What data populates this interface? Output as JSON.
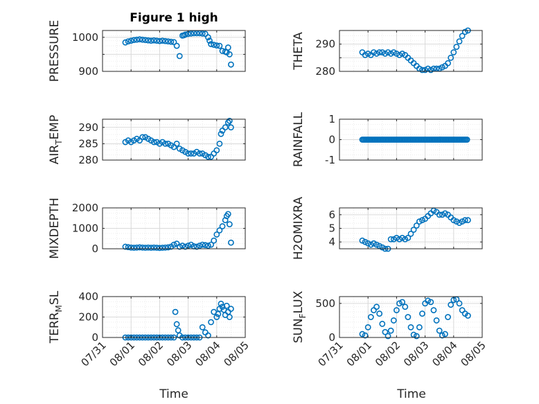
{
  "figure": {
    "title": "Figure 1 high",
    "xlabel": "Time"
  },
  "chart_data": [
    {
      "type": "scatter",
      "ylabel": "PRESSURE",
      "y_ticks": [
        900,
        950,
        1000
      ],
      "y_tick_labels": [
        "900",
        "",
        "1000"
      ],
      "ylim": [
        900,
        1020
      ],
      "xlim": [
        0,
        5
      ],
      "grid": true,
      "x": [
        0.8,
        0.9,
        1.0,
        1.1,
        1.2,
        1.3,
        1.4,
        1.5,
        1.6,
        1.7,
        1.8,
        1.9,
        2.0,
        2.1,
        2.2,
        2.3,
        2.4,
        2.5,
        2.6,
        2.7,
        2.8,
        2.85,
        2.9,
        3.0,
        3.1,
        3.2,
        3.3,
        3.4,
        3.5,
        3.6,
        3.7,
        3.75,
        3.8,
        3.9,
        4.0,
        4.1,
        4.2,
        4.3,
        4.35,
        4.4,
        4.45,
        4.5
      ],
      "y": [
        985,
        988,
        990,
        992,
        993,
        994,
        993,
        992,
        991,
        990,
        991,
        990,
        989,
        990,
        989,
        988,
        987,
        986,
        975,
        945,
        1005,
        1006,
        1008,
        1010,
        1011,
        1012,
        1012,
        1012,
        1011,
        1010,
        1000,
        990,
        980,
        978,
        976,
        975,
        960,
        958,
        956,
        970,
        950,
        920
      ]
    },
    {
      "type": "scatter",
      "ylabel": "THETA",
      "y_ticks": [
        280,
        285,
        290
      ],
      "y_tick_labels": [
        "280",
        "",
        "290"
      ],
      "ylim": [
        280,
        295
      ],
      "xlim": [
        0,
        5
      ],
      "grid": true,
      "x": [
        0.8,
        0.9,
        1.0,
        1.1,
        1.2,
        1.3,
        1.4,
        1.5,
        1.6,
        1.7,
        1.8,
        1.9,
        2.0,
        2.1,
        2.2,
        2.3,
        2.4,
        2.5,
        2.6,
        2.7,
        2.8,
        2.9,
        3.0,
        3.1,
        3.2,
        3.3,
        3.4,
        3.5,
        3.6,
        3.7,
        3.8,
        3.9,
        4.0,
        4.1,
        4.2,
        4.3,
        4.4,
        4.5
      ],
      "y": [
        287,
        286,
        286.5,
        286,
        287,
        286.5,
        287,
        287,
        286.5,
        287,
        286.5,
        287,
        286.5,
        286,
        286.5,
        286,
        285,
        284,
        283,
        282,
        281,
        280.5,
        280.5,
        281,
        280.5,
        281,
        281,
        281,
        281.5,
        282,
        283,
        285,
        287,
        289,
        291,
        293,
        294.5,
        295
      ]
    },
    {
      "type": "scatter",
      "ylabel": "AIR_TEMP",
      "y_ticks": [
        280,
        285,
        290
      ],
      "y_tick_labels": [
        "280",
        "285",
        "290"
      ],
      "ylim": [
        280,
        292.5
      ],
      "xlim": [
        0,
        5
      ],
      "grid": true,
      "x": [
        0.8,
        0.9,
        1.0,
        1.1,
        1.2,
        1.3,
        1.4,
        1.5,
        1.6,
        1.7,
        1.8,
        1.9,
        2.0,
        2.1,
        2.2,
        2.3,
        2.4,
        2.5,
        2.6,
        2.7,
        2.8,
        2.9,
        3.0,
        3.1,
        3.2,
        3.3,
        3.4,
        3.5,
        3.6,
        3.7,
        3.8,
        3.9,
        4.0,
        4.1,
        4.15,
        4.2,
        4.3,
        4.4,
        4.45,
        4.5
      ],
      "y": [
        285.5,
        286,
        285.5,
        286,
        286.5,
        286,
        287,
        287,
        286.5,
        286,
        285.5,
        285.5,
        285,
        285.5,
        285,
        285,
        284.5,
        284,
        285,
        283.5,
        283,
        282.5,
        282,
        282,
        282,
        282.5,
        282,
        282,
        281.5,
        281,
        281,
        282,
        283,
        285,
        288,
        289,
        290,
        291.5,
        292,
        290
      ]
    },
    {
      "type": "scatter",
      "ylabel": "RAINFALL",
      "y_ticks": [
        -1,
        0,
        1
      ],
      "y_tick_labels": [
        "-1",
        "0",
        "1"
      ],
      "ylim": [
        -1,
        1
      ],
      "xlim": [
        0,
        5
      ],
      "grid": true,
      "x_range": [
        0.8,
        4.5
      ],
      "constant_value": 0
    },
    {
      "type": "scatter",
      "ylabel": "MIXDEPTH",
      "y_ticks": [
        0,
        1000,
        2000
      ],
      "y_tick_labels": [
        "0",
        "1000",
        "2000"
      ],
      "ylim": [
        0,
        2000
      ],
      "xlim": [
        0,
        5
      ],
      "grid": true,
      "x": [
        0.8,
        0.9,
        1.0,
        1.1,
        1.2,
        1.3,
        1.4,
        1.5,
        1.6,
        1.7,
        1.8,
        1.9,
        2.0,
        2.1,
        2.2,
        2.3,
        2.4,
        2.5,
        2.6,
        2.7,
        2.8,
        2.9,
        3.0,
        3.1,
        3.2,
        3.3,
        3.4,
        3.5,
        3.6,
        3.7,
        3.8,
        3.9,
        4.0,
        4.1,
        4.2,
        4.3,
        4.35,
        4.4,
        4.45,
        4.5
      ],
      "y": [
        100,
        80,
        60,
        50,
        60,
        70,
        60,
        50,
        60,
        50,
        60,
        50,
        40,
        50,
        60,
        70,
        100,
        200,
        250,
        100,
        150,
        100,
        150,
        200,
        120,
        100,
        150,
        200,
        180,
        150,
        200,
        400,
        700,
        900,
        1100,
        1400,
        1600,
        1700,
        1200,
        300
      ]
    },
    {
      "type": "scatter",
      "ylabel": "H2OMIXRA",
      "y_ticks": [
        4,
        5,
        6
      ],
      "y_tick_labels": [
        "4",
        "5",
        "6"
      ],
      "ylim": [
        3.5,
        6.5
      ],
      "xlim": [
        0,
        5
      ],
      "grid": true,
      "x": [
        0.8,
        0.9,
        1.0,
        1.1,
        1.2,
        1.3,
        1.4,
        1.5,
        1.6,
        1.7,
        1.8,
        1.9,
        2.0,
        2.1,
        2.2,
        2.3,
        2.4,
        2.5,
        2.6,
        2.7,
        2.8,
        2.9,
        3.0,
        3.1,
        3.2,
        3.3,
        3.4,
        3.5,
        3.6,
        3.7,
        3.8,
        3.9,
        4.0,
        4.1,
        4.2,
        4.3,
        4.4,
        4.5
      ],
      "y": [
        4.1,
        4.0,
        3.9,
        3.8,
        3.9,
        3.8,
        3.7,
        3.6,
        3.5,
        3.5,
        4.2,
        4.2,
        4.3,
        4.2,
        4.3,
        4.2,
        4.3,
        4.6,
        4.9,
        5.2,
        5.5,
        5.6,
        5.7,
        5.9,
        6.1,
        6.3,
        6.2,
        6.0,
        6.0,
        6.1,
        6.0,
        5.8,
        5.6,
        5.5,
        5.4,
        5.5,
        5.6,
        5.6
      ]
    },
    {
      "type": "scatter",
      "ylabel": "TERR_MSL",
      "y_ticks": [
        0,
        200,
        400
      ],
      "y_tick_labels": [
        "0",
        "200",
        "400"
      ],
      "ylim": [
        0,
        400
      ],
      "xlim": [
        0,
        5
      ],
      "grid": true,
      "x": [
        0.8,
        0.9,
        1.0,
        1.1,
        1.2,
        1.3,
        1.4,
        1.5,
        1.6,
        1.7,
        1.8,
        1.9,
        2.0,
        2.1,
        2.2,
        2.3,
        2.4,
        2.5,
        2.55,
        2.6,
        2.65,
        2.7,
        2.8,
        2.9,
        3.0,
        3.1,
        3.2,
        3.3,
        3.4,
        3.5,
        3.6,
        3.7,
        3.8,
        3.9,
        4.0,
        4.05,
        4.1,
        4.15,
        4.2,
        4.25,
        4.3,
        4.35,
        4.4,
        4.45,
        4.5
      ],
      "y": [
        0,
        0,
        0,
        0,
        0,
        0,
        0,
        0,
        0,
        0,
        0,
        0,
        0,
        0,
        0,
        0,
        0,
        0,
        250,
        130,
        70,
        20,
        0,
        0,
        0,
        0,
        0,
        0,
        0,
        100,
        50,
        20,
        150,
        250,
        200,
        230,
        280,
        330,
        300,
        270,
        220,
        310,
        250,
        200,
        280
      ]
    },
    {
      "type": "scatter",
      "ylabel": "SUN_FLUX",
      "y_ticks": [
        0,
        500
      ],
      "y_tick_labels": [
        "0",
        "500"
      ],
      "ylim": [
        0,
        600
      ],
      "xlim": [
        0,
        5
      ],
      "grid": true,
      "x": [
        0.8,
        0.9,
        1.0,
        1.1,
        1.2,
        1.3,
        1.4,
        1.5,
        1.6,
        1.7,
        1.8,
        1.9,
        2.0,
        2.1,
        2.2,
        2.3,
        2.4,
        2.5,
        2.6,
        2.7,
        2.8,
        2.9,
        3.0,
        3.1,
        3.2,
        3.3,
        3.4,
        3.5,
        3.6,
        3.7,
        3.8,
        3.9,
        4.0,
        4.1,
        4.2,
        4.3,
        4.4,
        4.5
      ],
      "y": [
        50,
        30,
        150,
        300,
        400,
        450,
        350,
        200,
        80,
        20,
        100,
        250,
        400,
        500,
        520,
        450,
        300,
        150,
        40,
        20,
        150,
        350,
        500,
        540,
        520,
        400,
        250,
        100,
        30,
        50,
        300,
        480,
        550,
        560,
        500,
        400,
        350,
        320
      ]
    }
  ],
  "x_axis": {
    "tick_labels": [
      "07/31",
      "08/01",
      "08/02",
      "08/03",
      "08/04",
      "08/05"
    ],
    "tick_values": [
      0,
      1,
      2,
      3,
      4,
      5
    ]
  },
  "colors": {
    "marker": "#0072BD",
    "grid": "#d9d9d9",
    "axis": "#262626"
  }
}
